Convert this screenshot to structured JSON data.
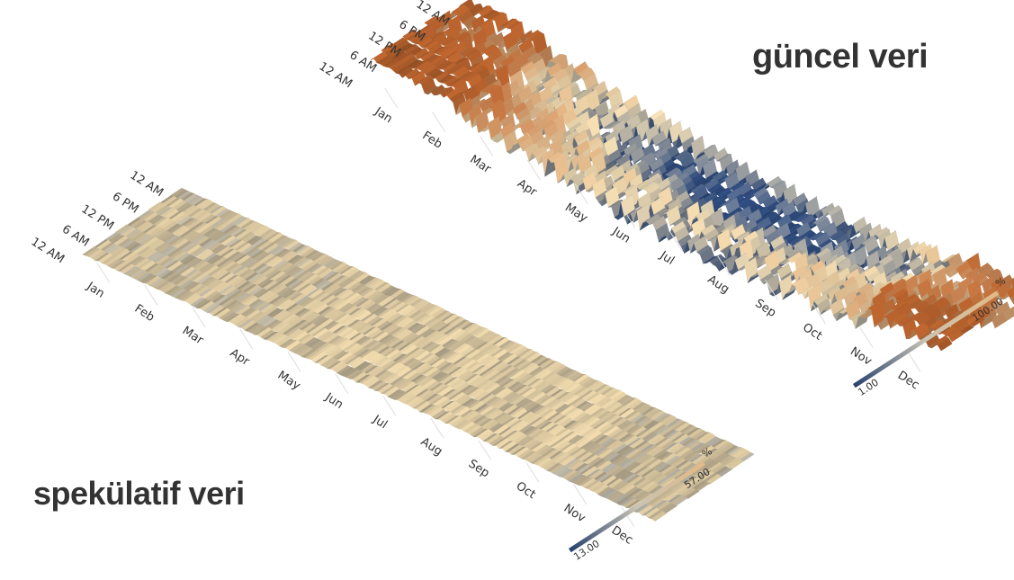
{
  "labels": {
    "current": "güncel veri",
    "speculative": "spekülatif veri"
  },
  "chart_data": [
    {
      "type": "heatmap",
      "name_label": "güncel veri",
      "x_ticks": [
        "Jan",
        "Feb",
        "Mar",
        "Apr",
        "May",
        "Jun",
        "Jul",
        "Aug",
        "Sep",
        "Oct",
        "Nov",
        "Dec"
      ],
      "y_ticks": [
        "12 AM",
        "6 AM",
        "12 PM",
        "6 PM",
        "12 AM"
      ],
      "colorbar": {
        "unit": "%",
        "min": 1.0,
        "max": 100.0
      },
      "color_low": "#2e4a7a",
      "color_mid": "#d9c6a0",
      "color_high": "#a85a2a"
    },
    {
      "type": "heatmap",
      "name_label": "spekülatif veri",
      "x_ticks": [
        "Jan",
        "Feb",
        "Mar",
        "Apr",
        "May",
        "Jun",
        "Jul",
        "Aug",
        "Sep",
        "Oct",
        "Nov",
        "Dec"
      ],
      "y_ticks": [
        "12 AM",
        "6 AM",
        "12 PM",
        "6 PM",
        "12 AM"
      ],
      "colorbar": {
        "unit": "%",
        "min": 13.0,
        "max": 57.0
      },
      "color_low": "#2e4a7a",
      "color_mid": "#d4c29c",
      "color_high": "#c9ad7f"
    }
  ]
}
